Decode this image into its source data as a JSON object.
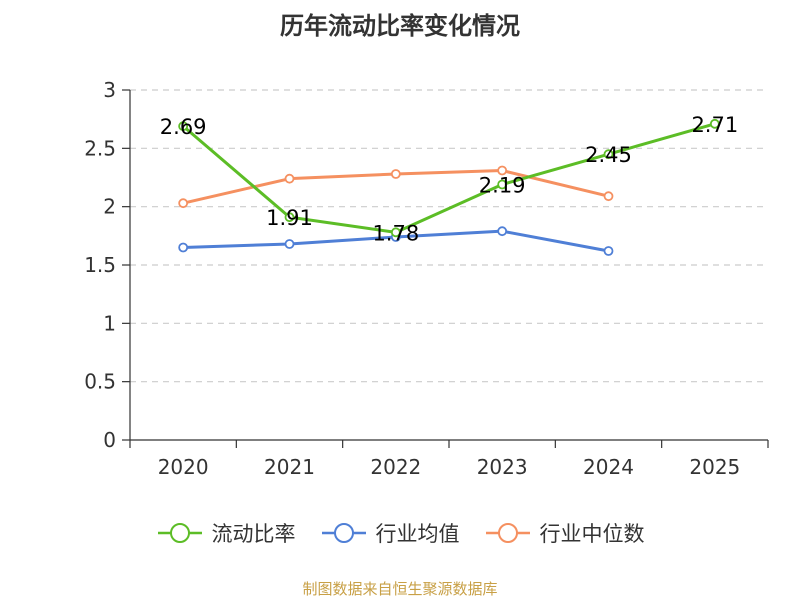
{
  "chart_data": {
    "type": "line",
    "title": "历年流动比率变化情况",
    "categories": [
      "2020",
      "2021",
      "2022",
      "2023",
      "2024",
      "2025"
    ],
    "ylim": [
      0,
      3
    ],
    "yticks": [
      0,
      0.5,
      1,
      1.5,
      2,
      2.5,
      3
    ],
    "grid": "horizontal-dashed",
    "legend_position": "bottom",
    "series": [
      {
        "name": "流动比率",
        "color": "#5cbd26",
        "values": [
          2.69,
          1.91,
          1.78,
          2.19,
          2.45,
          2.71
        ],
        "labels": [
          "2.69",
          "1.91",
          "1.78",
          "2.19",
          "2.45",
          "2.71"
        ]
      },
      {
        "name": "行业均值",
        "color": "#4f7fd6",
        "values": [
          1.65,
          1.68,
          1.74,
          1.79,
          1.62,
          null
        ]
      },
      {
        "name": "行业中位数",
        "color": "#f59060",
        "values": [
          2.03,
          2.24,
          2.28,
          2.31,
          2.09,
          null
        ]
      }
    ]
  },
  "source": "制图数据来自恒生聚源数据库"
}
